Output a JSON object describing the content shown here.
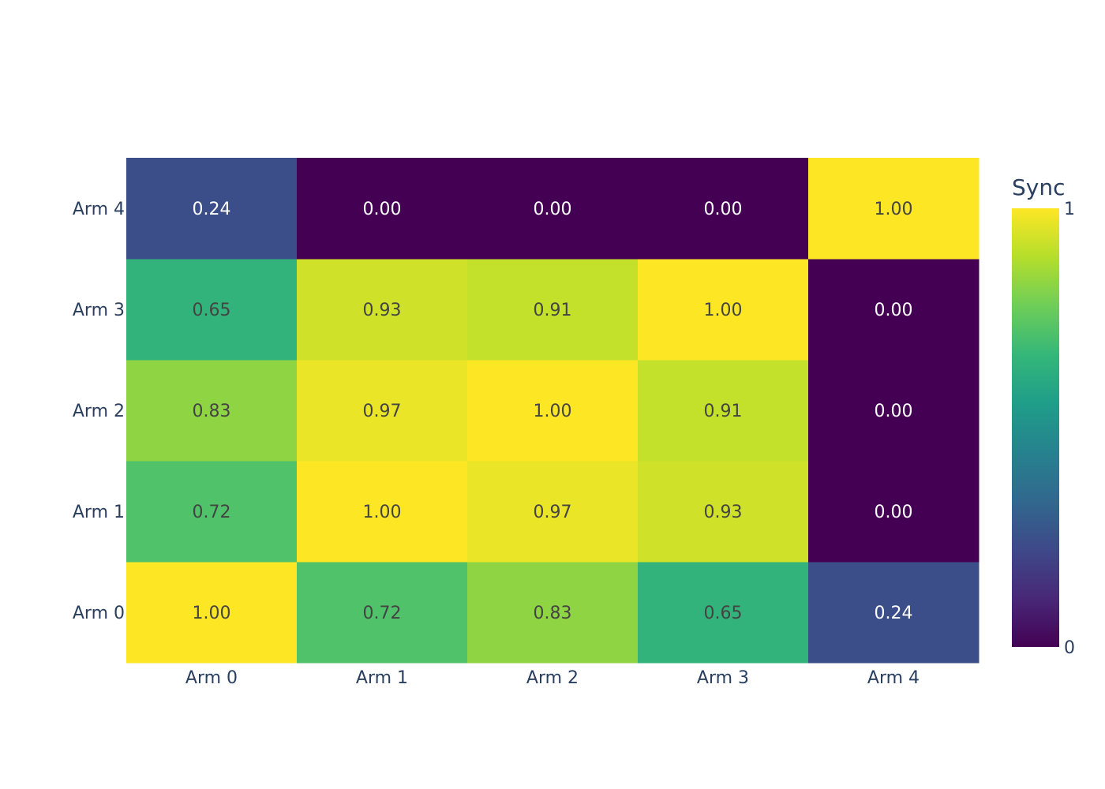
{
  "chart_data": {
    "type": "heatmap",
    "x_categories": [
      "Arm 0",
      "Arm 1",
      "Arm 2",
      "Arm 3",
      "Arm 4"
    ],
    "y_categories": [
      "Arm 0",
      "Arm 1",
      "Arm 2",
      "Arm 3",
      "Arm 4"
    ],
    "z": [
      [
        1.0,
        0.72,
        0.83,
        0.65,
        0.24
      ],
      [
        0.72,
        1.0,
        0.97,
        0.93,
        0.0
      ],
      [
        0.83,
        0.97,
        1.0,
        0.91,
        0.0
      ],
      [
        0.65,
        0.93,
        0.91,
        1.0,
        0.0
      ],
      [
        0.24,
        0.0,
        0.0,
        0.0,
        1.0
      ]
    ],
    "value_format": "0.00",
    "colorscale": "Viridis",
    "zmin": 0,
    "zmax": 1,
    "colorbar": {
      "title": "Sync",
      "ticks": [
        "0",
        "1"
      ]
    }
  }
}
